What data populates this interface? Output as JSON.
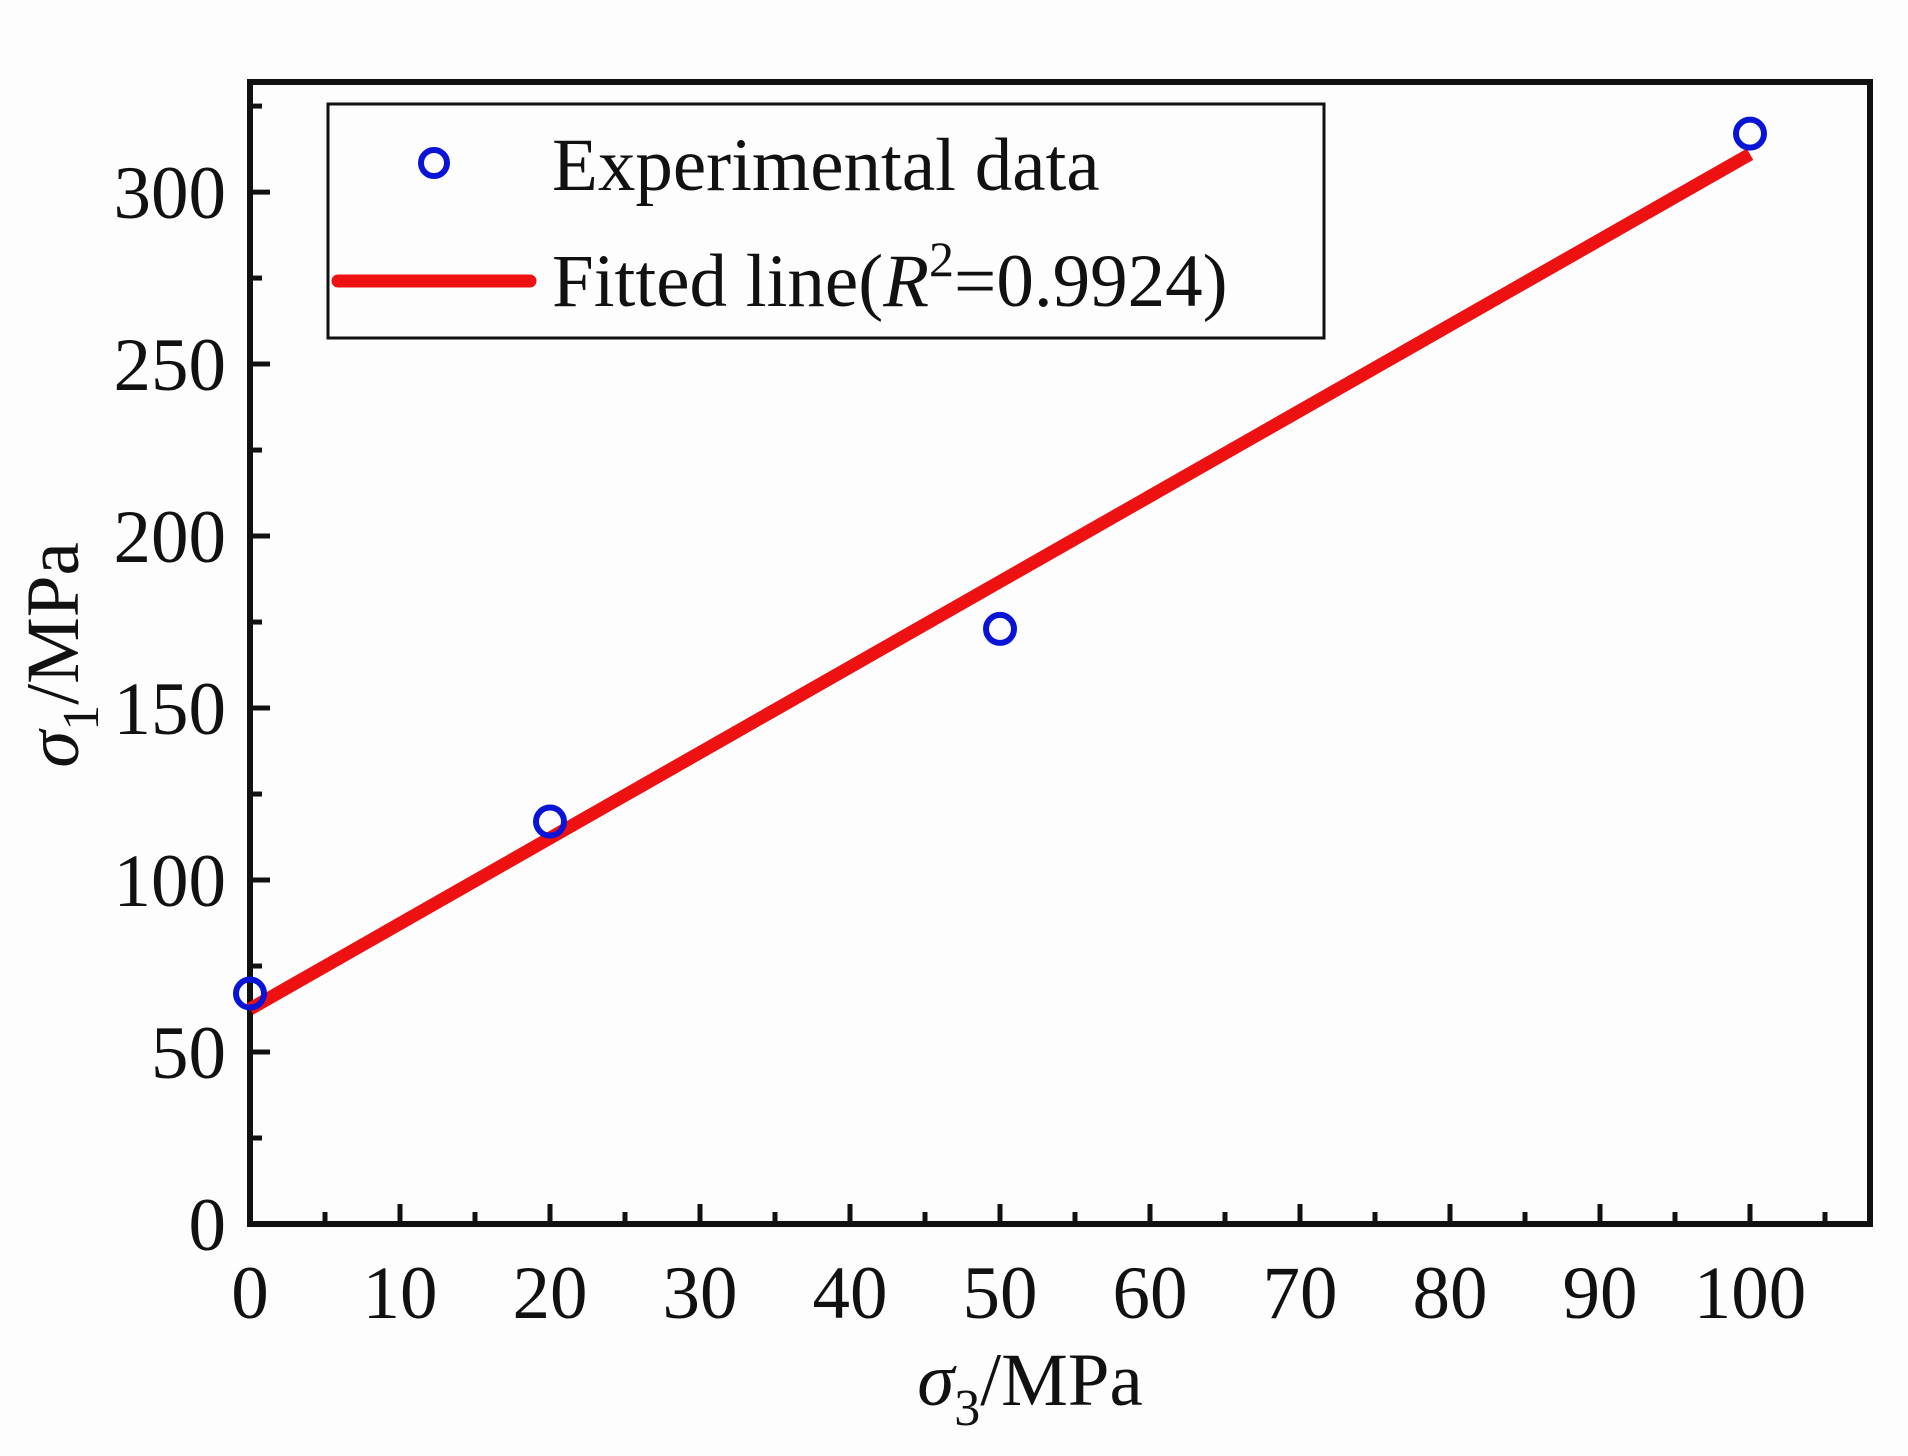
{
  "chart_data": {
    "type": "scatter",
    "xlabel": {
      "symbol": "σ",
      "sub": "3",
      "unit": "/MPa"
    },
    "ylabel": {
      "symbol": "σ",
      "sub": "1",
      "unit": "/MPa"
    },
    "xlim": [
      0,
      108
    ],
    "ylim": [
      0,
      332
    ],
    "xticks": [
      0,
      10,
      20,
      30,
      40,
      50,
      60,
      70,
      80,
      90,
      100
    ],
    "xtick_labels": [
      "0",
      "10",
      "20",
      "30",
      "40",
      "50",
      "60",
      "70",
      "80",
      "90",
      "100"
    ],
    "yticks": [
      0,
      50,
      100,
      150,
      200,
      250,
      300
    ],
    "ytick_labels": [
      "0",
      "50",
      "100",
      "150",
      "200",
      "250",
      "300"
    ],
    "series": [
      {
        "name": "Experimental data",
        "kind": "scatter",
        "marker": "open-circle",
        "color": "#0a14d6",
        "x": [
          0,
          20,
          50,
          100
        ],
        "y": [
          67,
          117,
          173,
          317
        ]
      },
      {
        "name": "Fitted line",
        "kind": "line",
        "color": "#ee1111",
        "x": [
          0,
          100
        ],
        "y": [
          62.5,
          311
        ]
      }
    ],
    "legend": {
      "position": "top-left",
      "entries": [
        {
          "label": "Experimental data"
        },
        {
          "label_prefix": "Fitted line(",
          "label_italic": "R",
          "label_sup": "2",
          "label_suffix": "=0.9924)"
        }
      ]
    }
  }
}
